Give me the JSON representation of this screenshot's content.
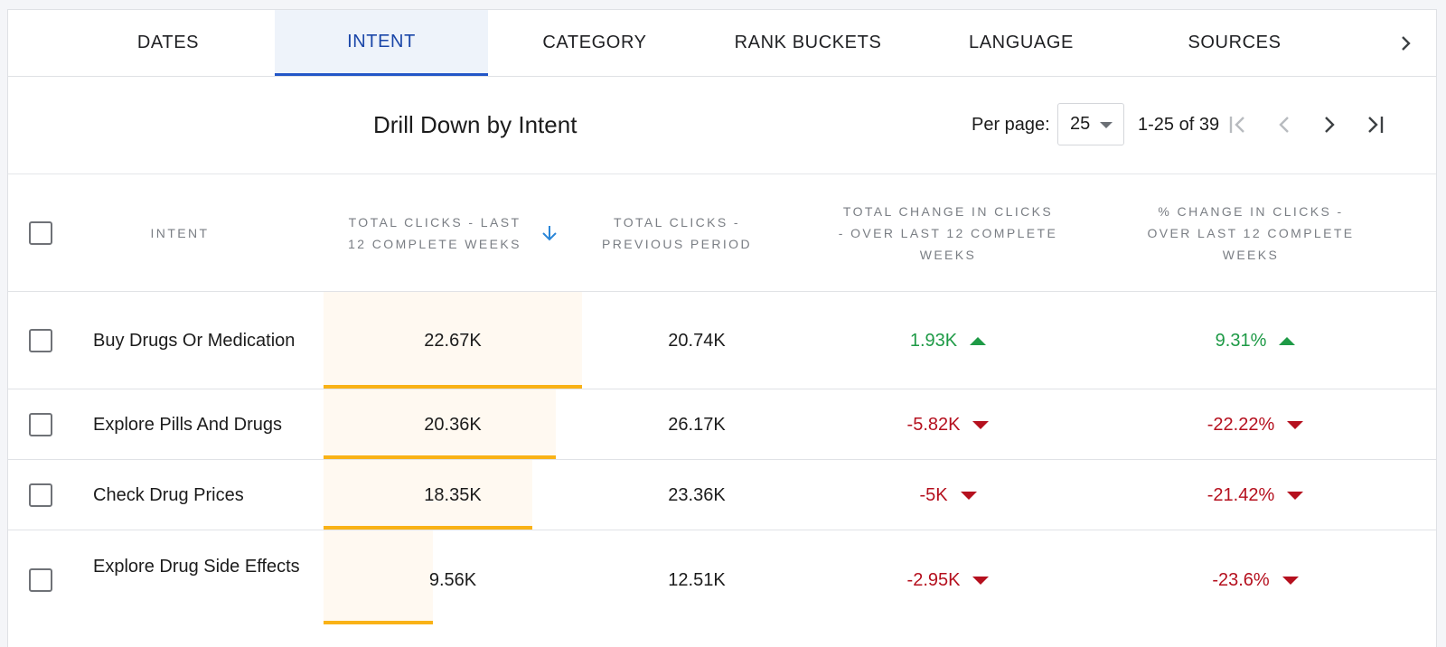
{
  "tabs": [
    {
      "label": "DATES",
      "active": false
    },
    {
      "label": "INTENT",
      "active": true
    },
    {
      "label": "CATEGORY",
      "active": false
    },
    {
      "label": "RANK BUCKETS",
      "active": false
    },
    {
      "label": "LANGUAGE",
      "active": false
    },
    {
      "label": "SOURCES",
      "active": false
    }
  ],
  "toolbar": {
    "title": "Drill Down by Intent",
    "per_page_label": "Per page:",
    "per_page_value": "25",
    "range": "1-25 of 39"
  },
  "columns": {
    "intent": "INTENT",
    "total_clicks": "TOTAL CLICKS - LAST 12 COMPLETE WEEKS",
    "previous": "TOTAL CLICKS - PREVIOUS PERIOD",
    "change": "TOTAL CHANGE IN CLICKS - OVER LAST 12 COMPLETE WEEKS",
    "pct_change": "% CHANGE IN CLICKS - OVER LAST 12 COMPLETE WEEKS"
  },
  "rows": [
    {
      "intent": "Buy Drugs Or Medication",
      "total": "22.67K",
      "previous": "20.74K",
      "change": "1.93K",
      "pct": "9.31%",
      "direction": "up",
      "bar_fraction": 1.0
    },
    {
      "intent": "Explore Pills And Drugs",
      "total": "20.36K",
      "previous": "26.17K",
      "change": "-5.82K",
      "pct": "-22.22%",
      "direction": "down",
      "bar_fraction": 0.898
    },
    {
      "intent": "Check Drug Prices",
      "total": "18.35K",
      "previous": "23.36K",
      "change": "-5K",
      "pct": "-21.42%",
      "direction": "down",
      "bar_fraction": 0.809
    },
    {
      "intent": "Explore Drug Side Effects",
      "total": "9.56K",
      "previous": "12.51K",
      "change": "-2.95K",
      "pct": "-23.6%",
      "direction": "down",
      "bar_fraction": 0.422
    }
  ],
  "colors": {
    "accent": "#2256c7",
    "bar": "#f9b216",
    "positive": "#1e9a46",
    "negative": "#b5101e"
  },
  "icons": {
    "tab_scroll": "chevron-right-icon",
    "sort": "arrow-down-icon",
    "first_page": "first-page-icon",
    "prev_page": "chevron-left-icon",
    "next_page": "chevron-right-icon",
    "last_page": "last-page-icon"
  }
}
